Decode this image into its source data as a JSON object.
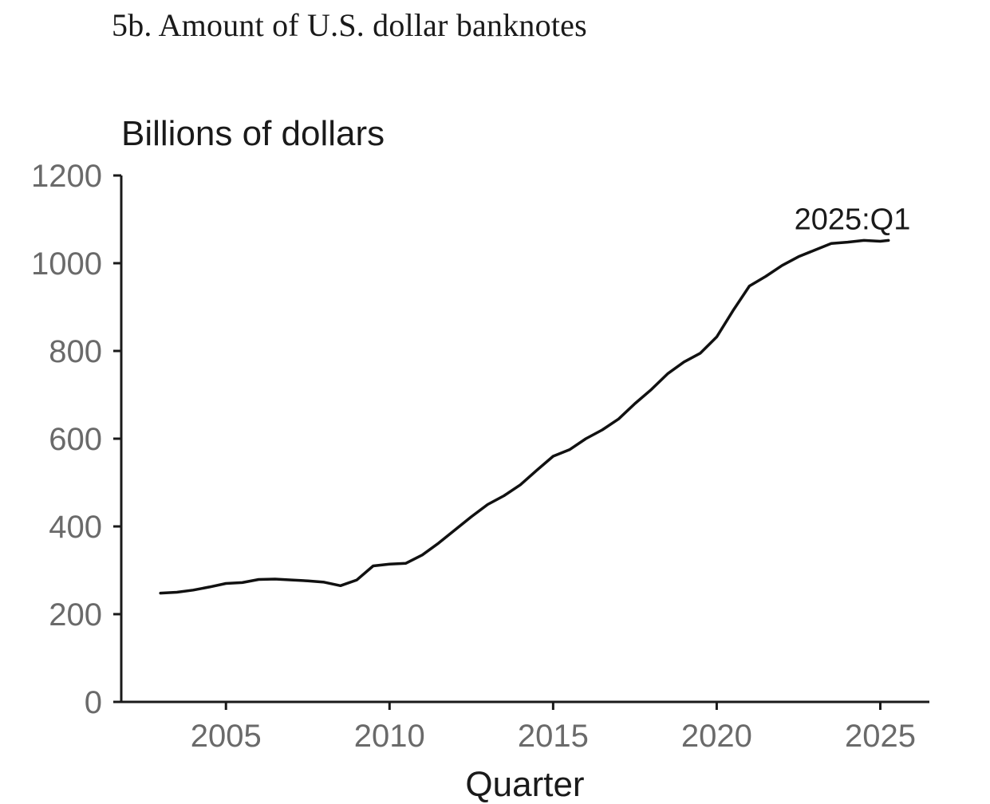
{
  "page": {
    "title": "5b. Amount of U.S. dollar banknotes"
  },
  "chart_data": {
    "type": "line",
    "units_label": "Billions of dollars",
    "xlabel": "Quarter",
    "ylabel": "",
    "xlim": [
      2001.8,
      2026.5
    ],
    "ylim": [
      0,
      1200
    ],
    "xticks": [
      2005,
      2010,
      2015,
      2020,
      2025
    ],
    "yticks": [
      0,
      200,
      400,
      600,
      800,
      1000,
      1200
    ],
    "grid": false,
    "annotation": {
      "text": "2025:Q1",
      "x": 2025.0,
      "y": 1052
    },
    "series": [
      {
        "color": "#111111",
        "x": [
          2003.0,
          2003.5,
          2004.0,
          2004.5,
          2005.0,
          2005.5,
          2006.0,
          2006.5,
          2007.0,
          2007.5,
          2008.0,
          2008.5,
          2009.0,
          2009.5,
          2010.0,
          2010.5,
          2011.0,
          2011.5,
          2012.0,
          2012.5,
          2013.0,
          2013.5,
          2014.0,
          2014.5,
          2015.0,
          2015.5,
          2016.0,
          2016.5,
          2017.0,
          2017.5,
          2018.0,
          2018.5,
          2019.0,
          2019.5,
          2020.0,
          2020.5,
          2021.0,
          2021.5,
          2022.0,
          2022.5,
          2023.0,
          2023.5,
          2024.0,
          2024.5,
          2025.0,
          2025.25
        ],
        "values": [
          248,
          250,
          255,
          262,
          270,
          272,
          279,
          280,
          278,
          276,
          273,
          265,
          278,
          310,
          314,
          316,
          335,
          362,
          392,
          422,
          450,
          470,
          495,
          528,
          560,
          575,
          600,
          620,
          645,
          680,
          712,
          748,
          775,
          795,
          832,
          892,
          948,
          970,
          995,
          1015,
          1030,
          1045,
          1048,
          1052,
          1050,
          1052
        ]
      }
    ]
  }
}
